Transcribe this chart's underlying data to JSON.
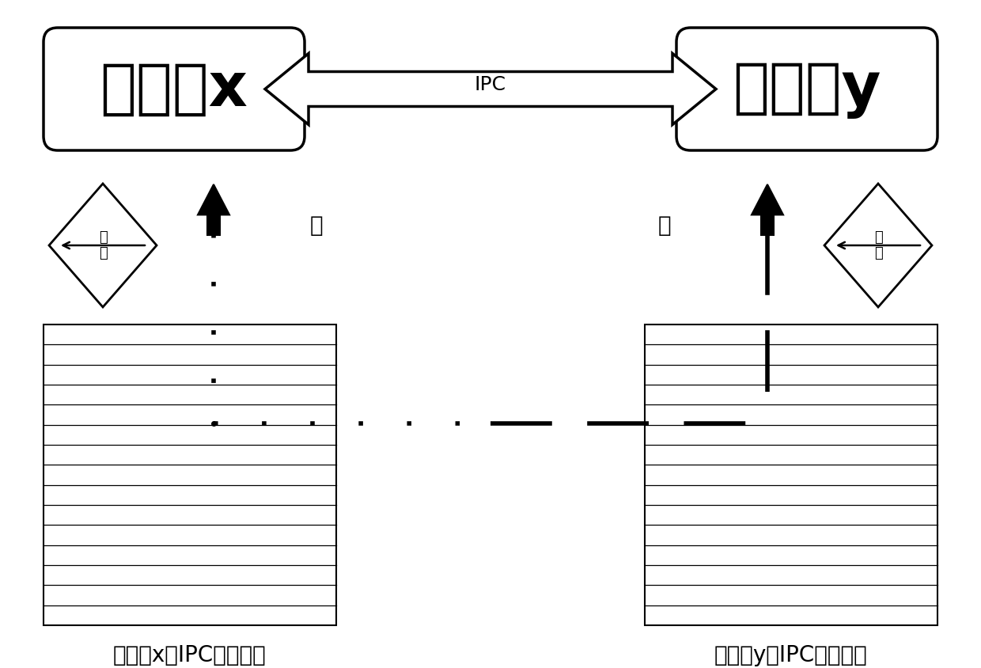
{
  "bg_color": "#ffffff",
  "processor_x_label": "处理器x",
  "processor_y_label": "处理器y",
  "ipc_label": "IPC",
  "read_label_x": "读",
  "read_label_y": "读",
  "memory_x_label": "处理器x的IPC通讯内存",
  "memory_y_label": "处理器y的IPC通讯内存",
  "interrupt_label": "中\n断",
  "fig_w": 12.4,
  "fig_h": 8.44,
  "dpi": 100
}
